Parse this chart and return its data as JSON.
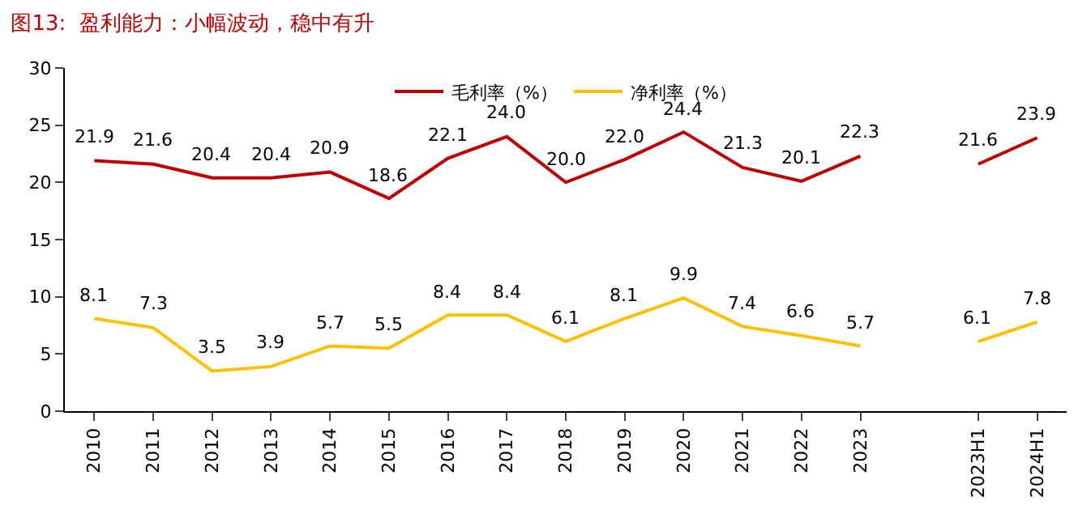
{
  "chart_data": {
    "type": "line",
    "title": "图13:  盈利能力：小幅波动，稳中有升",
    "categories": [
      "2010",
      "2011",
      "2012",
      "2013",
      "2014",
      "2015",
      "2016",
      "2017",
      "2018",
      "2019",
      "2020",
      "2021",
      "2022",
      "2023",
      null,
      "2023H1",
      "2024H1"
    ],
    "series": [
      {
        "name": "毛利率（%）",
        "color": "#c00000",
        "values": [
          21.9,
          21.6,
          20.4,
          20.4,
          20.9,
          18.6,
          22.1,
          24.0,
          20.0,
          22.0,
          24.4,
          21.3,
          20.1,
          22.3,
          null,
          21.6,
          23.9
        ],
        "value_labels": [
          "21.9",
          "21.6",
          "20.4",
          "20.4",
          "20.9",
          "18.6",
          "22.1",
          "24.0",
          "20.0",
          "22.0",
          "24.4",
          "21.3",
          "20.1",
          "22.3",
          null,
          "21.6",
          "23.9"
        ]
      },
      {
        "name": "净利率（%）",
        "color": "#ffc000",
        "values": [
          8.1,
          7.3,
          3.5,
          3.9,
          5.7,
          5.5,
          8.4,
          8.4,
          6.1,
          8.1,
          9.9,
          7.4,
          6.6,
          5.7,
          null,
          6.1,
          7.8
        ],
        "value_labels": [
          "8.1",
          "7.3",
          "3.5",
          "3.9",
          "5.7",
          "5.5",
          "8.4",
          "8.4",
          "6.1",
          "8.1",
          "9.9",
          "7.4",
          "6.6",
          "5.7",
          null,
          "6.1",
          "7.8"
        ]
      }
    ],
    "ylim": [
      0,
      30
    ],
    "yticks": [
      0,
      5,
      10,
      15,
      20,
      25,
      30
    ],
    "legend": "top",
    "marker": "none",
    "line_style": "solid"
  }
}
